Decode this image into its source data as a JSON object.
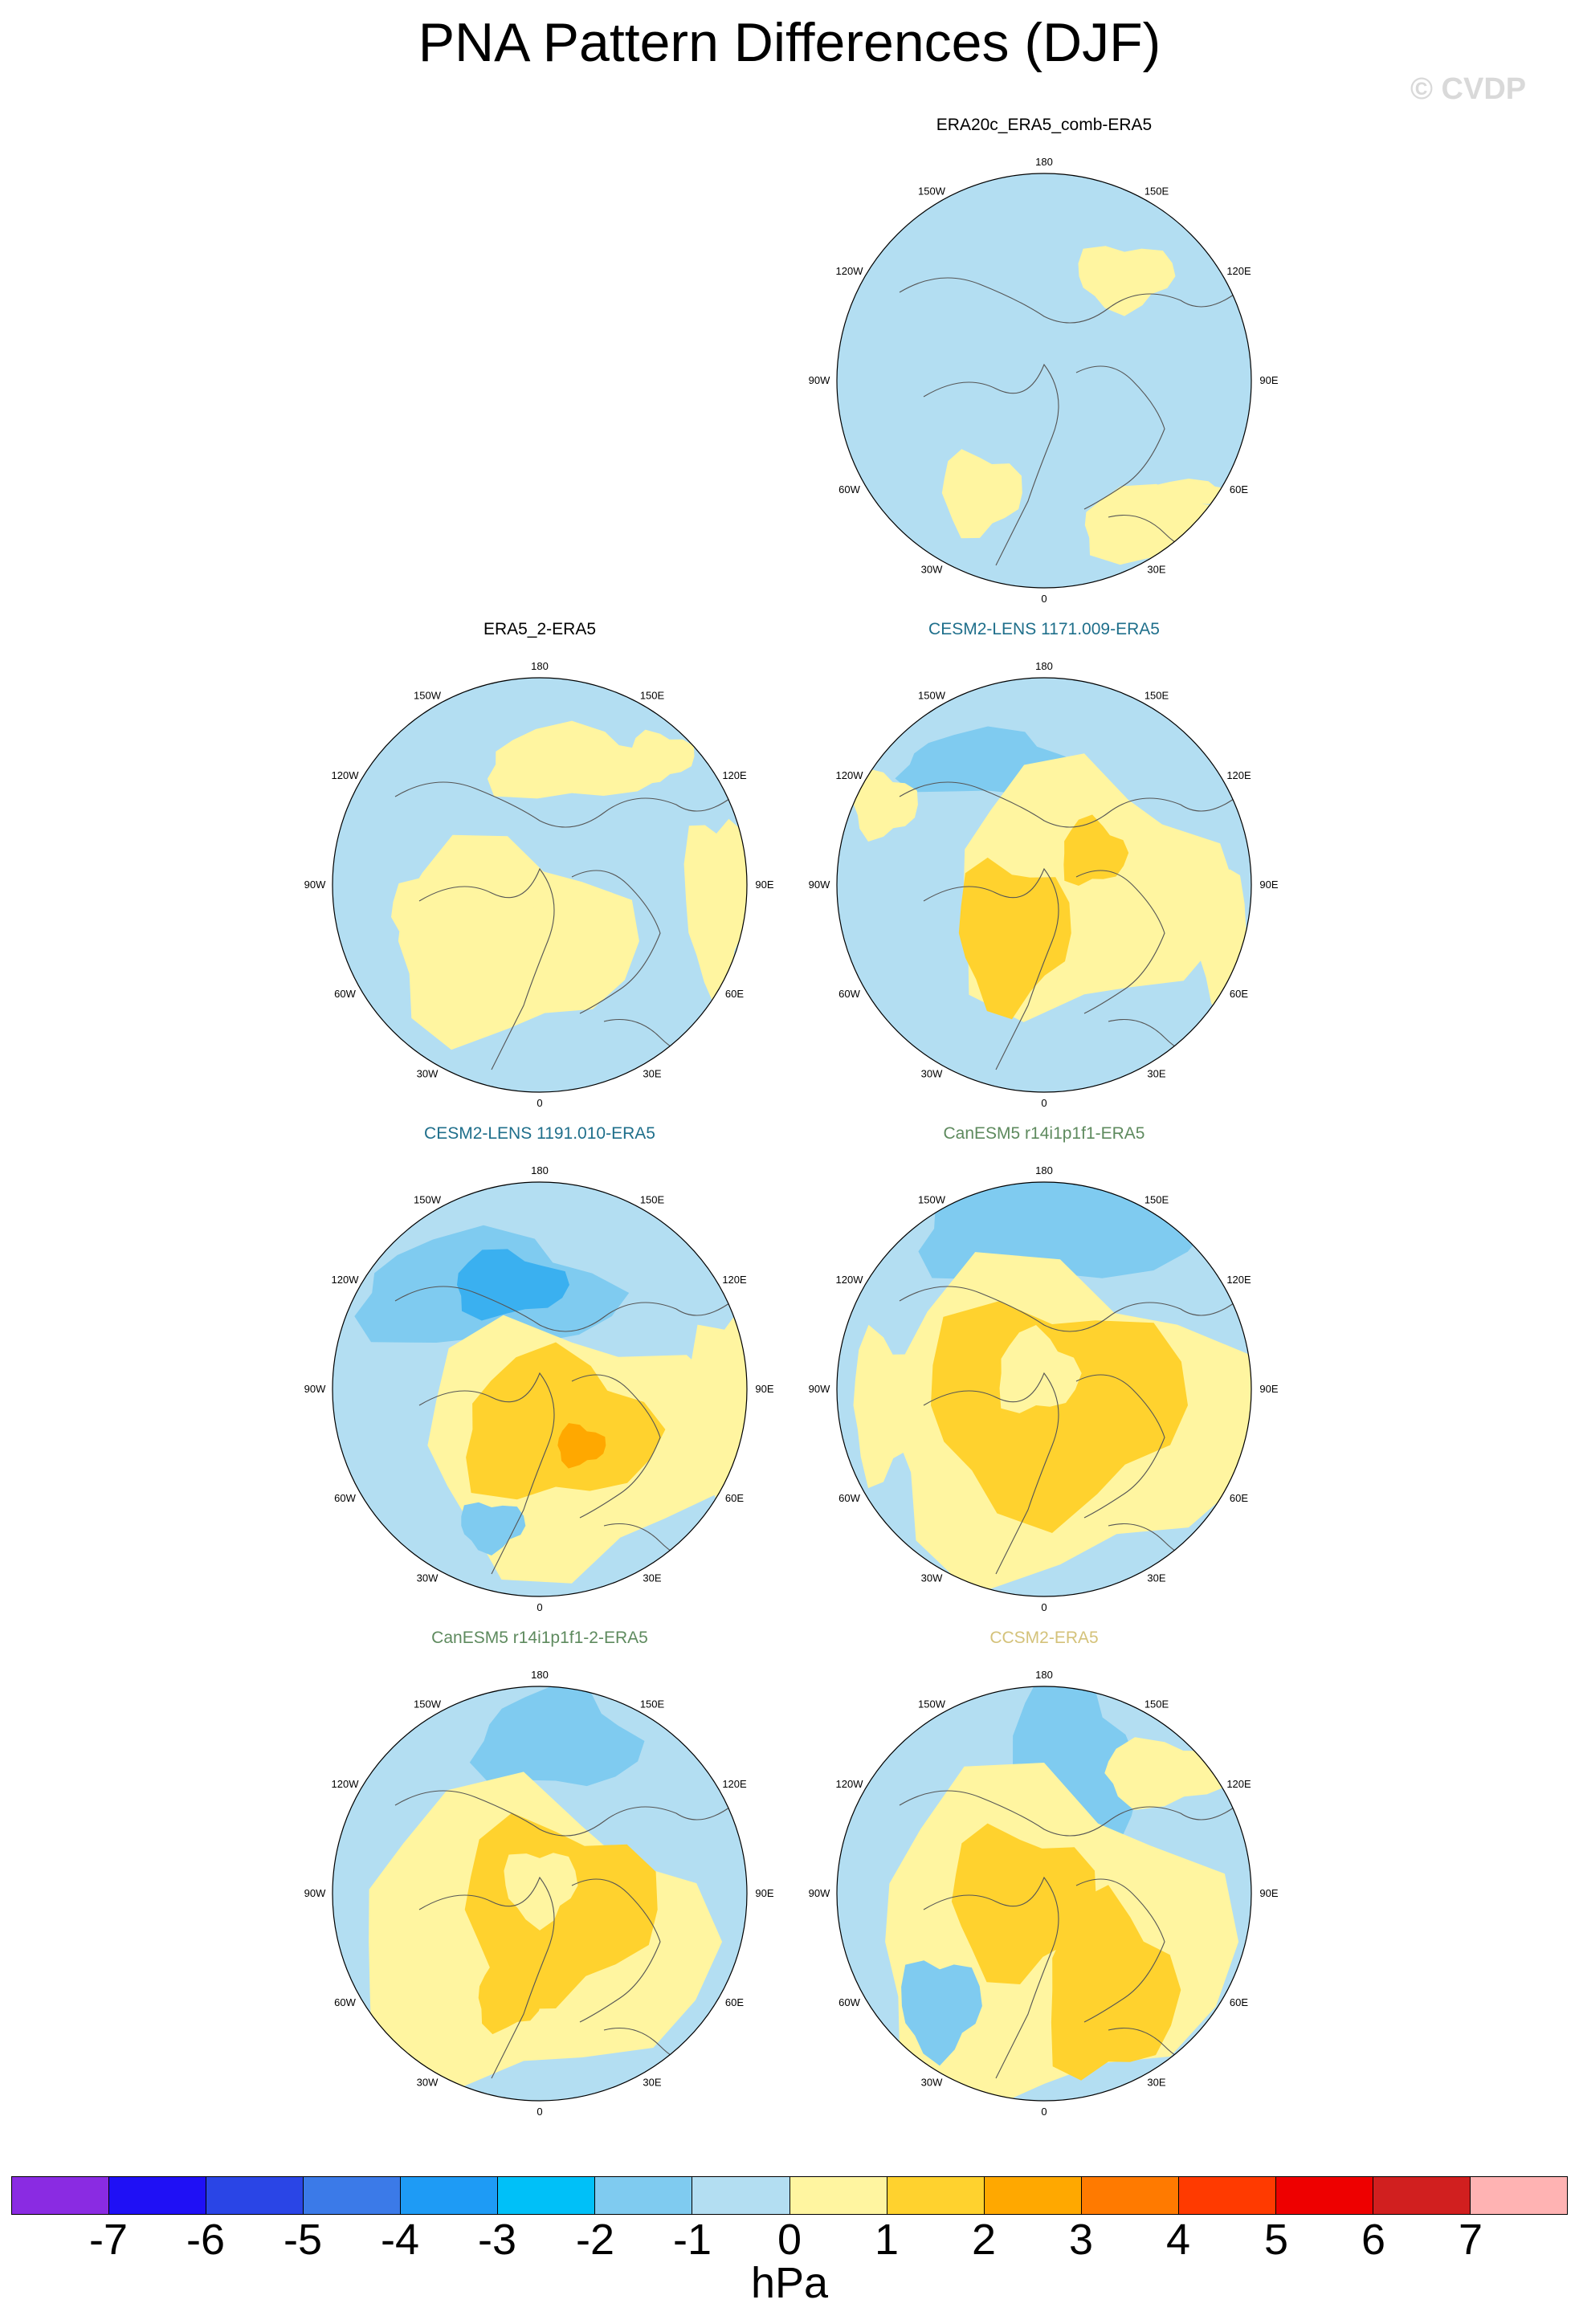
{
  "title": "PNA Pattern Differences (DJF)",
  "watermark": "© CVDP",
  "longitude_labels": {
    "top": "180",
    "bottom": "0",
    "upper_left": "150W",
    "upper_right": "150E",
    "upper_left2": "120W",
    "upper_right2": "120E",
    "left": "90W",
    "right": "90E",
    "lower_left2": "60W",
    "lower_right2": "60E",
    "lower_left": "30W",
    "lower_right": "30E"
  },
  "panels": [
    {
      "id": "p1",
      "title": "ERA20c_ERA5_comb-ERA5",
      "title_color": "#000000"
    },
    {
      "id": "p2",
      "title": "ERA5_2-ERA5",
      "title_color": "#000000"
    },
    {
      "id": "p3",
      "title": "CESM2-LENS 1171.009-ERA5",
      "title_color": "#1f6f8b"
    },
    {
      "id": "p4",
      "title": "CESM2-LENS 1191.010-ERA5",
      "title_color": "#1f6f8b"
    },
    {
      "id": "p5",
      "title": "CanESM5 r14i1p1f1-ERA5",
      "title_color": "#5e8a5e"
    },
    {
      "id": "p6",
      "title": "CanESM5 r14i1p1f1-2-ERA5",
      "title_color": "#5e8a5e"
    },
    {
      "id": "p7",
      "title": "CCSM2-ERA5",
      "title_color": "#d4c27a"
    }
  ],
  "colorbar": {
    "colors": [
      "#8a2be2",
      "#1f10f5",
      "#2a45e6",
      "#3b7ae8",
      "#1e9bf5",
      "#00c0f8",
      "#7fcbf0",
      "#b3def2",
      "#fff5a0",
      "#ffd22e",
      "#ffa800",
      "#ff7a00",
      "#ff3a00",
      "#ee0000",
      "#d11f1f",
      "#ffb3b3"
    ],
    "ticks": [
      "-7",
      "-6",
      "-5",
      "-4",
      "-3",
      "-2",
      "-1",
      "0",
      "1",
      "2",
      "3",
      "4",
      "5",
      "6",
      "7"
    ],
    "units": "hPa"
  }
}
